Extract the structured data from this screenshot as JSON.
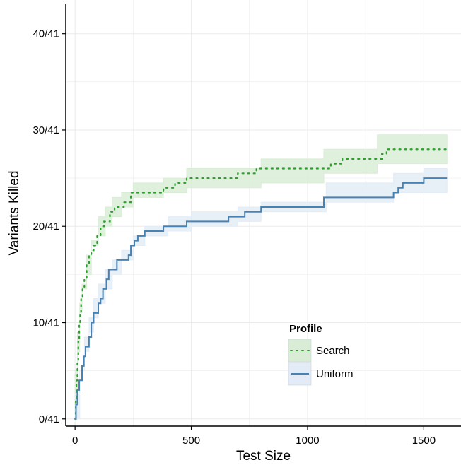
{
  "chart_data": {
    "type": "line",
    "title": "",
    "xlabel": "Test Size",
    "ylabel": "Variants Killed",
    "xlim": [
      -40,
      1660
    ],
    "ylim": [
      -0.75,
      43.5
    ],
    "x_ticks": [
      0,
      500,
      1000,
      1500
    ],
    "x_tick_labels": [
      "0",
      "500",
      "1000",
      "1500"
    ],
    "y_ticks": [
      0,
      10,
      20,
      30,
      40
    ],
    "y_tick_labels": [
      "0/41",
      "10/41",
      "20/41",
      "30/41",
      "40/41"
    ],
    "grid": true,
    "legend": {
      "title": "Profile",
      "position": "bottom-right"
    },
    "series": [
      {
        "name": "Search",
        "line_style": "dotted",
        "color": "#2ca02c",
        "band_color": "#d9edd6",
        "step": [
          [
            0,
            0
          ],
          [
            3,
            2
          ],
          [
            6,
            4
          ],
          [
            10,
            6
          ],
          [
            14,
            8
          ],
          [
            18,
            10
          ],
          [
            22,
            11
          ],
          [
            26,
            12.5
          ],
          [
            32,
            13.5
          ],
          [
            40,
            14.5
          ],
          [
            50,
            16
          ],
          [
            60,
            17
          ],
          [
            70,
            17.5
          ],
          [
            80,
            18
          ],
          [
            95,
            19
          ],
          [
            110,
            20
          ],
          [
            125,
            20.5
          ],
          [
            150,
            21.5
          ],
          [
            170,
            22
          ],
          [
            210,
            22.5
          ],
          [
            240,
            23.5
          ],
          [
            380,
            24
          ],
          [
            430,
            24.5
          ],
          [
            480,
            25
          ],
          [
            700,
            25.5
          ],
          [
            780,
            26
          ],
          [
            1100,
            26.5
          ],
          [
            1150,
            27
          ],
          [
            1320,
            27.5
          ],
          [
            1340,
            28
          ],
          [
            1600,
            28
          ]
        ],
        "band": [
          [
            0,
            0,
            0
          ],
          [
            10,
            5,
            7
          ],
          [
            20,
            9,
            12
          ],
          [
            30,
            11,
            14
          ],
          [
            50,
            13.5,
            17
          ],
          [
            70,
            15,
            18.5
          ],
          [
            100,
            18,
            21
          ],
          [
            130,
            19,
            22
          ],
          [
            160,
            20,
            23
          ],
          [
            200,
            21,
            23.5
          ],
          [
            250,
            22,
            24.5
          ],
          [
            380,
            23,
            25
          ],
          [
            480,
            23.5,
            26
          ],
          [
            800,
            24,
            27
          ],
          [
            1070,
            24.5,
            28
          ],
          [
            1300,
            25.5,
            29.5
          ],
          [
            1600,
            26.5,
            29.5
          ]
        ]
      },
      {
        "name": "Uniform",
        "line_style": "solid",
        "color": "#4682b4",
        "band_color": "#e3ecf6",
        "step": [
          [
            0,
            0
          ],
          [
            4,
            1.5
          ],
          [
            10,
            3
          ],
          [
            18,
            4
          ],
          [
            30,
            5.5
          ],
          [
            38,
            6.5
          ],
          [
            45,
            7.5
          ],
          [
            60,
            8.5
          ],
          [
            70,
            10
          ],
          [
            80,
            11
          ],
          [
            100,
            12
          ],
          [
            110,
            12.5
          ],
          [
            120,
            13.5
          ],
          [
            135,
            14.5
          ],
          [
            145,
            15.5
          ],
          [
            180,
            16.5
          ],
          [
            230,
            17
          ],
          [
            240,
            18
          ],
          [
            255,
            18.5
          ],
          [
            270,
            19
          ],
          [
            300,
            19.5
          ],
          [
            380,
            20
          ],
          [
            480,
            20.5
          ],
          [
            660,
            21
          ],
          [
            730,
            21.5
          ],
          [
            800,
            22
          ],
          [
            1070,
            23
          ],
          [
            1370,
            23.5
          ],
          [
            1390,
            24
          ],
          [
            1410,
            24.5
          ],
          [
            1500,
            25
          ],
          [
            1600,
            25
          ]
        ],
        "band": [
          [
            0,
            0,
            0
          ],
          [
            20,
            2.5,
            5
          ],
          [
            40,
            5,
            8.5
          ],
          [
            60,
            7,
            10.5
          ],
          [
            80,
            9,
            12.5
          ],
          [
            100,
            10.5,
            14
          ],
          [
            130,
            12,
            15.5
          ],
          [
            160,
            13.5,
            16.5
          ],
          [
            200,
            15,
            17.5
          ],
          [
            250,
            16.5,
            19
          ],
          [
            300,
            18,
            20
          ],
          [
            400,
            19,
            21
          ],
          [
            500,
            19.5,
            21.5
          ],
          [
            700,
            20,
            22
          ],
          [
            800,
            20.5,
            22.5
          ],
          [
            1080,
            21.5,
            24.5
          ],
          [
            1370,
            22.5,
            25.5
          ],
          [
            1500,
            23.5,
            26
          ],
          [
            1600,
            23.5,
            26
          ]
        ]
      }
    ]
  }
}
